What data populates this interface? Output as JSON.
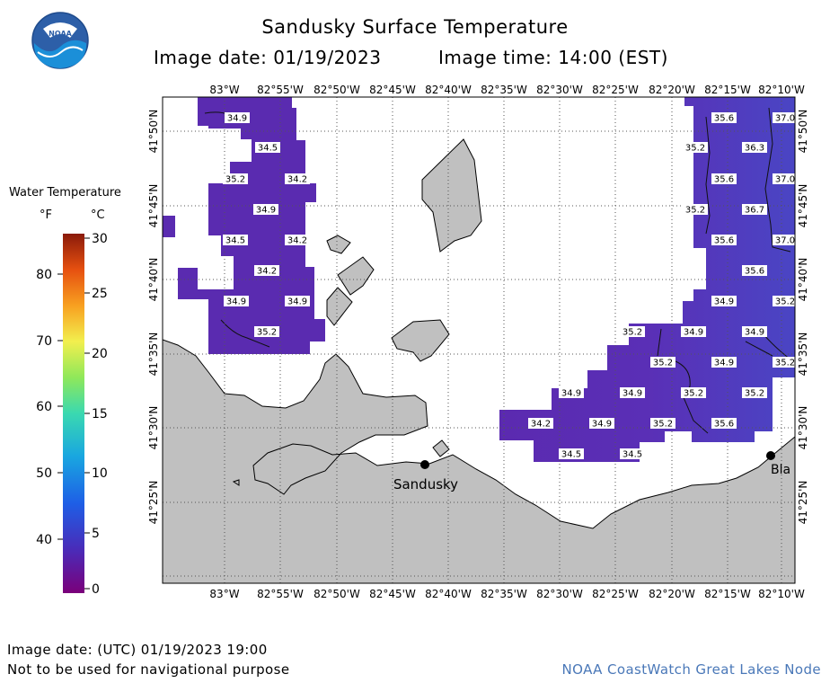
{
  "header": {
    "title": "Sandusky Surface Temperature",
    "image_date": "Image date: 01/19/2023",
    "image_time": "Image time: 14:00 (EST)"
  },
  "logo": {
    "text": "NOAA"
  },
  "legend": {
    "title": "Water Temperature",
    "unit_f": "°F",
    "unit_c": "°C",
    "f_ticks": [
      "80",
      "70",
      "60",
      "50",
      "40"
    ],
    "c_ticks": [
      "30",
      "25",
      "20",
      "15",
      "10",
      "5",
      "0"
    ]
  },
  "axes": {
    "longitudes": [
      "83°W",
      "82°55'W",
      "82°50'W",
      "82°45'W",
      "82°40'W",
      "82°35'W",
      "82°30'W",
      "82°25'W",
      "82°20'W",
      "82°15'W",
      "82°10'W"
    ],
    "latitudes": [
      "41°50'N",
      "41°45'N",
      "41°40'N",
      "41°35'N",
      "41°30'N",
      "41°25'N"
    ]
  },
  "places": [
    {
      "name": "Sandusky"
    },
    {
      "name": "Bla"
    }
  ],
  "temperature_labels": [
    "34.9",
    "34.5",
    "35.2",
    "34.2",
    "34.9",
    "34.5",
    "34.2",
    "34.2",
    "34.9",
    "34.9",
    "35.2",
    "35.6",
    "37.0",
    "35.2",
    "36.3",
    "35.6",
    "37.0",
    "35.2",
    "36.7",
    "35.6",
    "37.0",
    "35.6",
    "34.9",
    "35.2",
    "35.2",
    "34.9",
    "34.9",
    "35.2",
    "34.9",
    "35.2",
    "34.9",
    "34.9",
    "35.2",
    "35.2",
    "34.2",
    "34.9",
    "35.2",
    "35.6",
    "34.5",
    "34.5"
  ],
  "footer": {
    "utc_date": "Image date: (UTC) 01/19/2023  19:00",
    "disclaimer": "Not to be used for navigational purpose",
    "credit": "NOAA CoastWatch Great Lakes Node"
  },
  "colors": {
    "land": "#c0c0c0",
    "water_cold": "#5a2bb0",
    "grid": "#555555"
  }
}
